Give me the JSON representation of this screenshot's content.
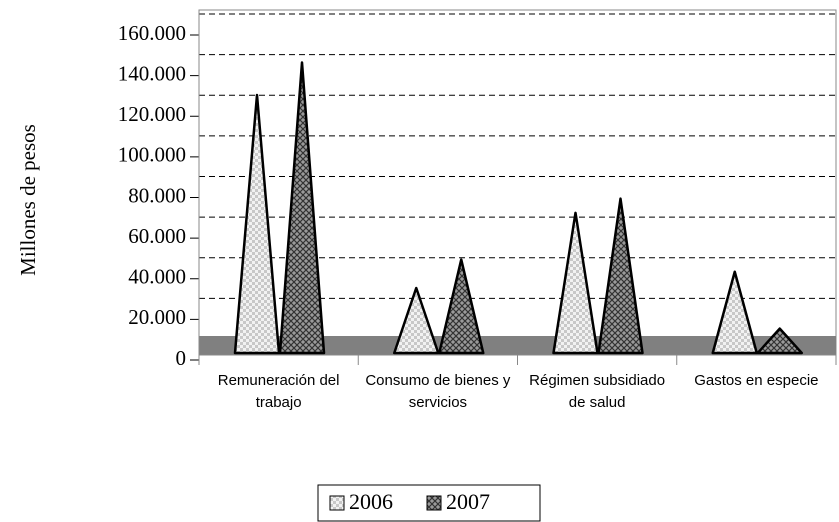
{
  "chart_data": {
    "type": "pyramid",
    "y_label": "Millones de pesos",
    "categories": [
      "Remuneración del trabajo",
      "Consumo de bienes y servicios",
      "Régimen subsidiado de salud",
      "Gastos en especie"
    ],
    "series": [
      {
        "name": "2006",
        "color": "#e6e6e6",
        "values": [
          127000,
          32000,
          69000,
          40000
        ]
      },
      {
        "name": "2007",
        "color": "#8c8c8c",
        "values": [
          143000,
          46000,
          76000,
          12000
        ]
      }
    ],
    "ylim": [
      0,
      160000
    ],
    "yticks": [
      0,
      {
        "value": 20000,
        "label": "20.000"
      },
      {
        "value": 40000,
        "label": "40.000"
      },
      {
        "value": 60000,
        "label": "60.000"
      },
      {
        "value": 80000,
        "label": "80.000"
      },
      {
        "value": 100000,
        "label": "100.000"
      },
      {
        "value": 120000,
        "label": "120.000"
      },
      {
        "value": 140000,
        "label": "140.000"
      },
      {
        "value": 160000,
        "label": "160.000"
      }
    ],
    "grid": true
  }
}
